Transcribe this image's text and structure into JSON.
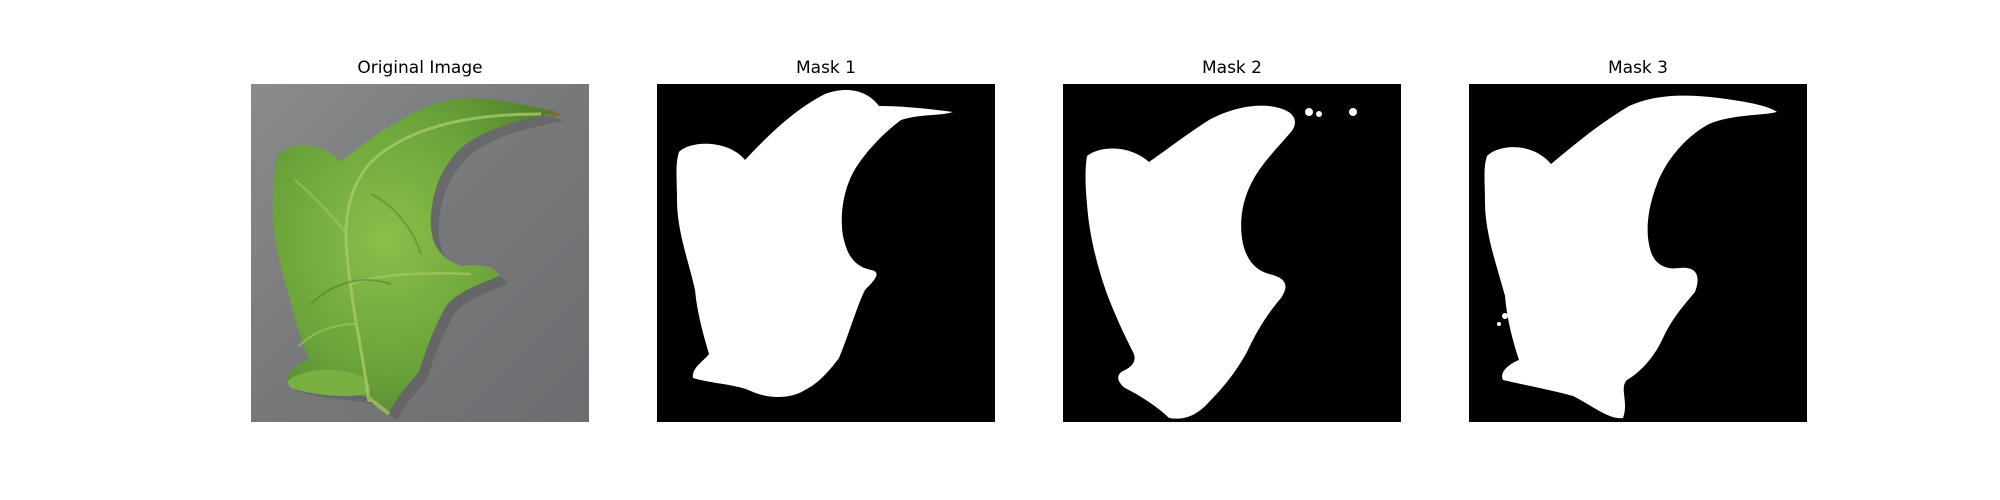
{
  "figure": {
    "panels": [
      {
        "title": "Original Image"
      },
      {
        "title": "Mask 1"
      },
      {
        "title": "Mask 2"
      },
      {
        "title": "Mask 3"
      }
    ]
  },
  "colors": {
    "background": "#ffffff",
    "photo_background": "#7c7d7f",
    "leaf": "#6fa83a",
    "mask_background": "#000000",
    "mask_foreground": "#ffffff"
  }
}
